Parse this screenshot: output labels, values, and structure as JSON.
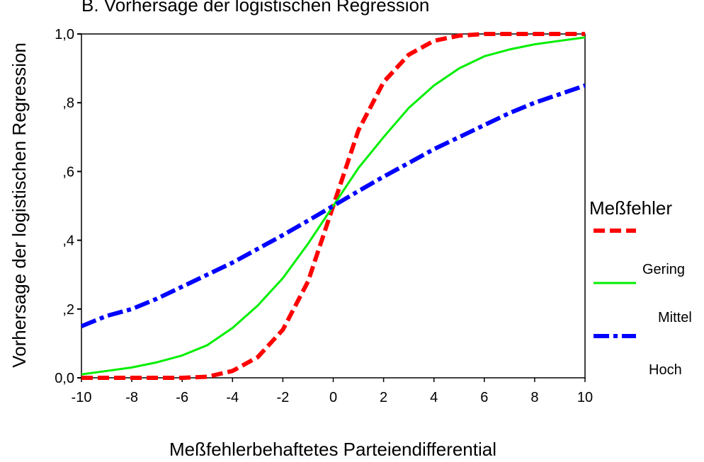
{
  "chart_data": {
    "type": "line",
    "title": "B. Vorhersage der logistischen Regression",
    "xlabel": "Meßfehlerbehaftetes Parteiendifferential",
    "ylabel": "Vorhersage der logistischen Regression",
    "xlim": [
      -10,
      10
    ],
    "ylim": [
      0,
      1
    ],
    "x_ticks": [
      -10,
      -8,
      -6,
      -4,
      -2,
      0,
      2,
      4,
      6,
      8,
      10
    ],
    "x_tick_labels": [
      "-10",
      "-8",
      "-6",
      "-4",
      "-2",
      "0",
      "2",
      "4",
      "6",
      "8",
      "10"
    ],
    "y_ticks": [
      0,
      0.2,
      0.4,
      0.6,
      0.8,
      1.0
    ],
    "y_tick_labels": [
      "0,0",
      ",2",
      ",4",
      ",6",
      ",8",
      "1,0"
    ],
    "grid": false,
    "legend": {
      "title": "Meßfehler",
      "placement": "right",
      "entries": [
        "Gering",
        "Mittel",
        "Hoch"
      ]
    },
    "x": [
      -10,
      -9,
      -8,
      -7,
      -6,
      -5,
      -4,
      -3,
      -2,
      -1,
      0,
      1,
      2,
      3,
      4,
      5,
      6,
      7,
      8,
      9,
      10
    ],
    "series": [
      {
        "name": "Gering",
        "color": "#ff0000",
        "style": "dashed",
        "values": [
          0.0,
          0.0,
          0.0,
          0.0,
          0.0,
          0.003,
          0.02,
          0.06,
          0.14,
          0.28,
          0.5,
          0.72,
          0.86,
          0.94,
          0.98,
          0.995,
          1.0,
          1.0,
          1.0,
          1.0,
          1.0
        ]
      },
      {
        "name": "Mittel",
        "color": "#00ee00",
        "style": "solid",
        "values": [
          0.01,
          0.02,
          0.03,
          0.045,
          0.065,
          0.095,
          0.145,
          0.21,
          0.29,
          0.39,
          0.5,
          0.61,
          0.7,
          0.785,
          0.85,
          0.9,
          0.935,
          0.955,
          0.97,
          0.98,
          0.99
        ]
      },
      {
        "name": "Hoch",
        "color": "#0000ff",
        "style": "dashdot",
        "values": [
          0.15,
          0.18,
          0.2,
          0.23,
          0.265,
          0.3,
          0.335,
          0.375,
          0.415,
          0.457,
          0.5,
          0.543,
          0.585,
          0.625,
          0.665,
          0.7,
          0.735,
          0.77,
          0.8,
          0.825,
          0.85
        ]
      }
    ]
  }
}
